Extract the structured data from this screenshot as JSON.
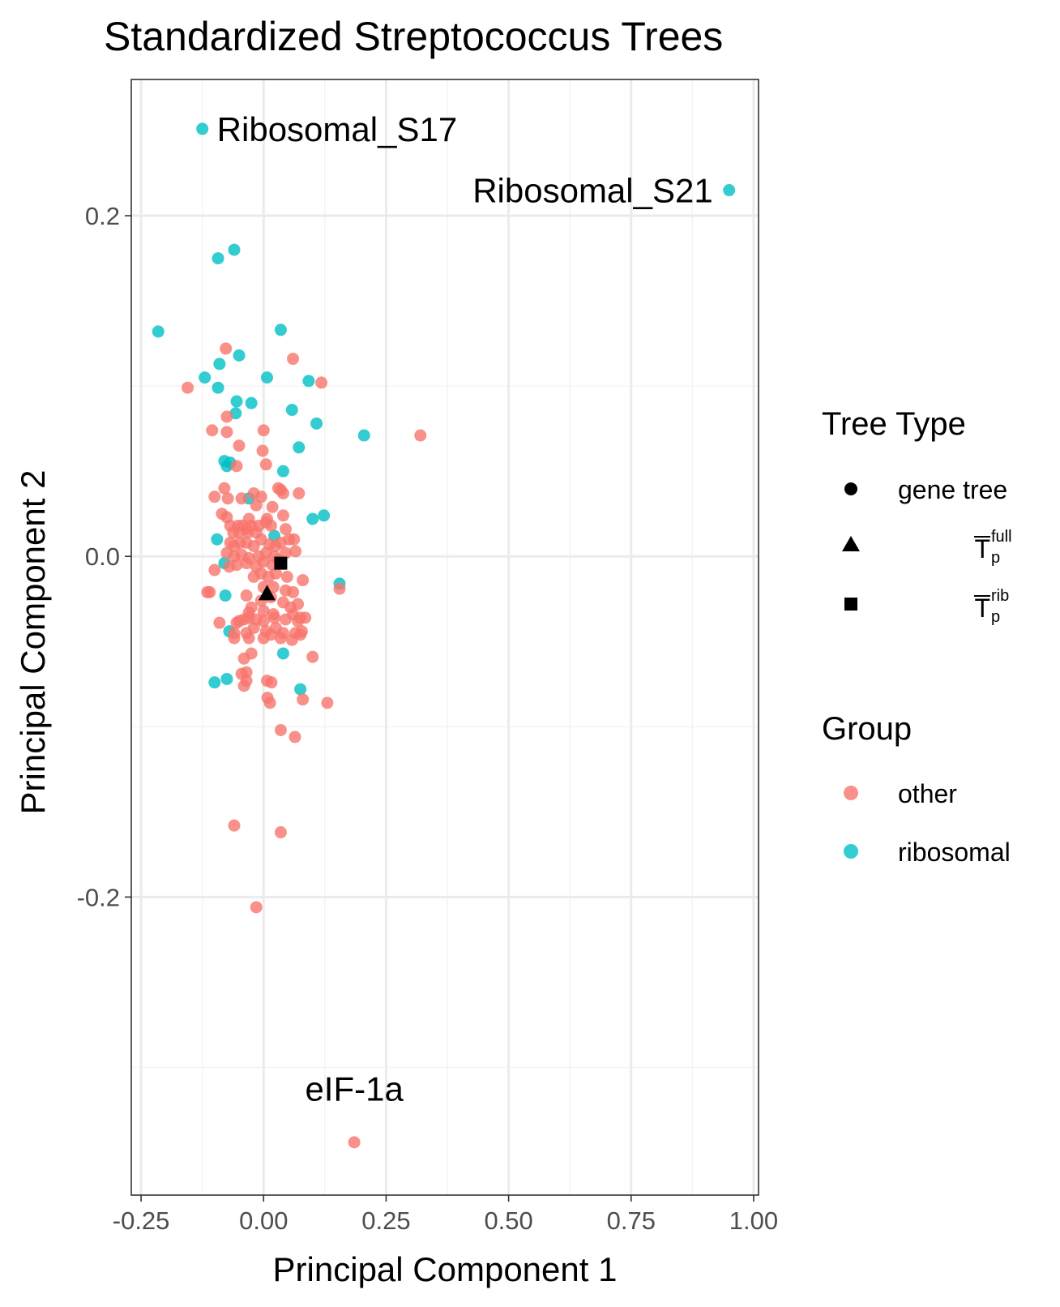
{
  "chart_data": {
    "type": "scatter",
    "title": "Standardized Streptococcus Trees",
    "xlabel": "Principal Component 1",
    "ylabel": "Principal Component 2",
    "xlim": [
      -0.27,
      1.01
    ],
    "ylim": [
      -0.375,
      0.28
    ],
    "x_ticks": [
      -0.25,
      0.0,
      0.25,
      0.5,
      0.75,
      1.0
    ],
    "x_tick_labels": [
      "-0.25",
      "0.00",
      "0.25",
      "0.50",
      "0.75",
      "1.00"
    ],
    "y_ticks": [
      -0.2,
      0.0,
      0.2
    ],
    "y_tick_labels": [
      "-0.2",
      "0.0",
      "0.2"
    ],
    "grid": true,
    "legend_position": "right",
    "colors": {
      "other": "#F8766D",
      "ribosomal": "#00BFC4",
      "reference": "#000000",
      "grid_major": "#ebebeb",
      "grid_minor": "#f4f4f4"
    },
    "legends": {
      "tree_type": {
        "title": "Tree Type",
        "items": [
          {
            "shape": "circle",
            "label": "gene tree",
            "sup": "",
            "sub": ""
          },
          {
            "shape": "triangle",
            "label": "T",
            "sup": "full",
            "sub": "p"
          },
          {
            "shape": "square",
            "label": "T",
            "sup": "rib",
            "sub": "p"
          }
        ]
      },
      "group": {
        "title": "Group",
        "items": [
          {
            "label": "other",
            "color": "#F8766D"
          },
          {
            "label": "ribosomal",
            "color": "#00BFC4"
          }
        ]
      }
    },
    "annotations": [
      {
        "text": "Ribosomal_S17",
        "x": -0.125,
        "y": 0.251,
        "anchor": "start"
      },
      {
        "text": "Ribosomal_S21",
        "x": 0.95,
        "y": 0.215,
        "anchor": "end"
      },
      {
        "text": "eIF-1a",
        "x": 0.185,
        "y": -0.329,
        "anchor": "middle"
      }
    ],
    "reference_points": [
      {
        "label": "T_p^full",
        "shape": "triangle",
        "x": 0.007,
        "y": -0.022
      },
      {
        "label": "T_p^rib",
        "shape": "square",
        "x": 0.035,
        "y": -0.004
      }
    ],
    "series": [
      {
        "name": "ribosomal",
        "points": [
          [
            -0.125,
            0.251
          ],
          [
            0.95,
            0.215
          ],
          [
            -0.06,
            0.18
          ],
          [
            -0.093,
            0.175
          ],
          [
            -0.215,
            0.132
          ],
          [
            0.035,
            0.133
          ],
          [
            -0.09,
            0.113
          ],
          [
            -0.05,
            0.118
          ],
          [
            -0.12,
            0.105
          ],
          [
            -0.093,
            0.099
          ],
          [
            0.007,
            0.105
          ],
          [
            0.092,
            0.103
          ],
          [
            -0.025,
            0.09
          ],
          [
            -0.055,
            0.091
          ],
          [
            -0.057,
            0.084
          ],
          [
            0.058,
            0.086
          ],
          [
            0.108,
            0.078
          ],
          [
            0.205,
            0.071
          ],
          [
            0.072,
            0.064
          ],
          [
            -0.08,
            0.056
          ],
          [
            -0.075,
            0.053
          ],
          [
            -0.068,
            0.055
          ],
          [
            0.04,
            0.05
          ],
          [
            -0.03,
            0.034
          ],
          [
            0.123,
            0.024
          ],
          [
            0.1,
            0.022
          ],
          [
            -0.095,
            0.01
          ],
          [
            0.022,
            0.012
          ],
          [
            -0.08,
            -0.004
          ],
          [
            0.155,
            -0.016
          ],
          [
            -0.078,
            -0.023
          ],
          [
            -0.07,
            -0.044
          ],
          [
            0.04,
            -0.057
          ],
          [
            -0.1,
            -0.074
          ],
          [
            -0.075,
            -0.072
          ],
          [
            0.075,
            -0.078
          ]
        ]
      },
      {
        "name": "other",
        "points": [
          [
            0.32,
            0.071
          ],
          [
            -0.155,
            0.099
          ],
          [
            0.118,
            0.102
          ],
          [
            -0.077,
            0.122
          ],
          [
            0.06,
            0.116
          ],
          [
            -0.075,
            0.082
          ],
          [
            -0.105,
            0.074
          ],
          [
            0.0,
            0.074
          ],
          [
            -0.075,
            0.073
          ],
          [
            -0.05,
            0.065
          ],
          [
            -0.002,
            0.062
          ],
          [
            0.005,
            0.054
          ],
          [
            -0.055,
            0.053
          ],
          [
            -0.08,
            0.04
          ],
          [
            -0.02,
            0.037
          ],
          [
            0.03,
            0.04
          ],
          [
            0.035,
            0.039
          ],
          [
            -0.005,
            0.035
          ],
          [
            0.072,
            0.037
          ],
          [
            -0.1,
            0.035
          ],
          [
            -0.073,
            0.034
          ],
          [
            -0.045,
            0.034
          ],
          [
            0.04,
            0.037
          ],
          [
            -0.015,
            0.03
          ],
          [
            0.018,
            0.029
          ],
          [
            -0.085,
            0.025
          ],
          [
            -0.075,
            0.023
          ],
          [
            0.007,
            0.022
          ],
          [
            -0.03,
            0.022
          ],
          [
            0.04,
            0.024
          ],
          [
            -0.068,
            0.018
          ],
          [
            -0.052,
            0.018
          ],
          [
            -0.043,
            0.018
          ],
          [
            -0.035,
            0.016
          ],
          [
            -0.025,
            0.018
          ],
          [
            -0.01,
            0.018
          ],
          [
            0.005,
            0.02
          ],
          [
            0.015,
            0.018
          ],
          [
            -0.062,
            0.014
          ],
          [
            -0.05,
            0.014
          ],
          [
            -0.032,
            0.014
          ],
          [
            -0.015,
            0.014
          ],
          [
            0.045,
            0.016
          ],
          [
            -0.068,
            0.008
          ],
          [
            -0.06,
            0.006
          ],
          [
            -0.048,
            0.008
          ],
          [
            -0.035,
            0.008
          ],
          [
            -0.02,
            0.006
          ],
          [
            -0.005,
            0.01
          ],
          [
            0.012,
            0.007
          ],
          [
            0.024,
            0.006
          ],
          [
            0.035,
            0.008
          ],
          [
            0.052,
            0.01
          ],
          [
            0.062,
            0.01
          ],
          [
            -0.075,
            0.002
          ],
          [
            -0.06,
            0.0
          ],
          [
            -0.045,
            0.001
          ],
          [
            -0.03,
            -0.001
          ],
          [
            -0.01,
            0.0
          ],
          [
            0.005,
            0.002
          ],
          [
            0.022,
            0.0
          ],
          [
            0.045,
            0.002
          ],
          [
            0.065,
            0.003
          ],
          [
            -0.055,
            -0.005
          ],
          [
            -0.035,
            -0.004
          ],
          [
            -0.015,
            -0.006
          ],
          [
            0.0,
            -0.003
          ],
          [
            0.018,
            -0.005
          ],
          [
            0.03,
            -0.002
          ],
          [
            -0.1,
            -0.008
          ],
          [
            -0.07,
            -0.006
          ],
          [
            -0.005,
            -0.01
          ],
          [
            0.01,
            -0.012
          ],
          [
            0.025,
            -0.01
          ],
          [
            -0.02,
            -0.012
          ],
          [
            0.048,
            -0.012
          ],
          [
            0.08,
            -0.014
          ],
          [
            0.155,
            -0.019
          ],
          [
            -0.11,
            -0.021
          ],
          [
            -0.115,
            -0.021
          ],
          [
            0.0,
            -0.018
          ],
          [
            0.02,
            -0.018
          ],
          [
            0.045,
            -0.02
          ],
          [
            0.06,
            -0.021
          ],
          [
            -0.035,
            -0.023
          ],
          [
            -0.005,
            -0.026
          ],
          [
            0.015,
            -0.024
          ],
          [
            0.04,
            -0.027
          ],
          [
            0.055,
            -0.03
          ],
          [
            0.07,
            -0.028
          ],
          [
            -0.025,
            -0.03
          ],
          [
            -0.03,
            -0.033
          ],
          [
            0.0,
            -0.032
          ],
          [
            0.02,
            -0.034
          ],
          [
            -0.03,
            -0.036
          ],
          [
            0.06,
            -0.034
          ],
          [
            0.075,
            -0.036
          ],
          [
            -0.05,
            -0.038
          ],
          [
            -0.04,
            -0.037
          ],
          [
            -0.015,
            -0.037
          ],
          [
            0.0,
            -0.038
          ],
          [
            0.022,
            -0.036
          ],
          [
            0.045,
            -0.037
          ],
          [
            0.085,
            -0.036
          ],
          [
            0.07,
            -0.038
          ],
          [
            -0.09,
            -0.039
          ],
          [
            -0.055,
            -0.039
          ],
          [
            -0.06,
            -0.045
          ],
          [
            -0.035,
            -0.045
          ],
          [
            -0.02,
            -0.042
          ],
          [
            0.005,
            -0.044
          ],
          [
            0.025,
            -0.042
          ],
          [
            0.04,
            -0.045
          ],
          [
            0.065,
            -0.045
          ],
          [
            0.078,
            -0.044
          ],
          [
            -0.06,
            -0.048
          ],
          [
            -0.03,
            -0.048
          ],
          [
            0.0,
            -0.048
          ],
          [
            0.015,
            -0.046
          ],
          [
            0.035,
            -0.048
          ],
          [
            0.058,
            -0.049
          ],
          [
            0.075,
            -0.046
          ],
          [
            0.1,
            -0.059
          ],
          [
            -0.04,
            -0.06
          ],
          [
            -0.025,
            -0.057
          ],
          [
            -0.035,
            -0.068
          ],
          [
            -0.045,
            -0.069
          ],
          [
            -0.035,
            -0.073
          ],
          [
            -0.04,
            -0.076
          ],
          [
            0.007,
            -0.073
          ],
          [
            0.016,
            -0.074
          ],
          [
            0.008,
            -0.083
          ],
          [
            0.013,
            -0.086
          ],
          [
            0.08,
            -0.084
          ],
          [
            0.13,
            -0.086
          ],
          [
            0.035,
            -0.102
          ],
          [
            0.064,
            -0.106
          ],
          [
            -0.06,
            -0.158
          ],
          [
            0.035,
            -0.162
          ],
          [
            -0.015,
            -0.206
          ],
          [
            0.185,
            -0.344
          ]
        ]
      }
    ]
  }
}
